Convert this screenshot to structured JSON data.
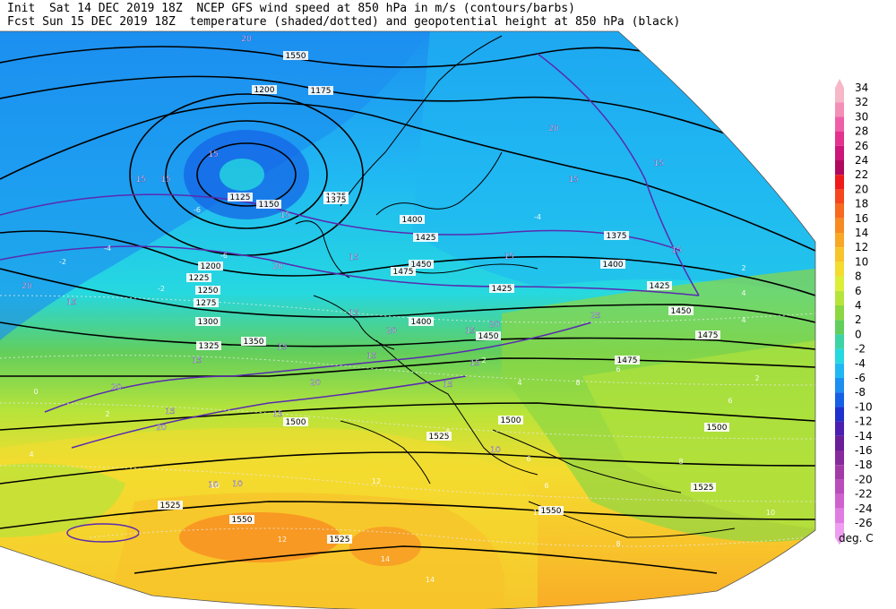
{
  "header": {
    "line1": "Init  Sat 14 DEC 2019 18Z  NCEP GFS wind speed at 850 hPa in m/s (contours/barbs)",
    "line2": "Fcst Sun 15 DEC 2019 18Z  temperature (shaded/dotted) and geopotential height at 850 hPa (black)"
  },
  "legend": {
    "unit": "deg. C",
    "levels": [
      {
        "label": "34",
        "color": "#f6b8c8"
      },
      {
        "label": "32",
        "color": "#f48fb8"
      },
      {
        "label": "30",
        "color": "#ef5fa8"
      },
      {
        "label": "28",
        "color": "#e4328f"
      },
      {
        "label": "26",
        "color": "#cc167a"
      },
      {
        "label": "24",
        "color": "#b00a5e"
      },
      {
        "label": "22",
        "color": "#ef1a1a"
      },
      {
        "label": "20",
        "color": "#f5461d"
      },
      {
        "label": "18",
        "color": "#f76a1f"
      },
      {
        "label": "16",
        "color": "#f88a22"
      },
      {
        "label": "14",
        "color": "#f9a826"
      },
      {
        "label": "12",
        "color": "#f8c42b"
      },
      {
        "label": "10",
        "color": "#f4dc2f"
      },
      {
        "label": "8",
        "color": "#dcee36"
      },
      {
        "label": "6",
        "color": "#b7e43a"
      },
      {
        "label": "4",
        "color": "#8dd743"
      },
      {
        "label": "2",
        "color": "#62ce5c"
      },
      {
        "label": "0",
        "color": "#3dd3a4"
      },
      {
        "label": "-2",
        "color": "#26d8e0"
      },
      {
        "label": "-4",
        "color": "#20b8f2"
      },
      {
        "label": "-6",
        "color": "#1c8ff0"
      },
      {
        "label": "-8",
        "color": "#1660e6"
      },
      {
        "label": "-10",
        "color": "#1f31cc"
      },
      {
        "label": "-12",
        "color": "#4c1fb0"
      },
      {
        "label": "-14",
        "color": "#6a1e98"
      },
      {
        "label": "-16",
        "color": "#862a9c"
      },
      {
        "label": "-18",
        "color": "#a23aa8"
      },
      {
        "label": "-20",
        "color": "#ba4cbb"
      },
      {
        "label": "-22",
        "color": "#cf62cf"
      },
      {
        "label": "-24",
        "color": "#e07de2"
      },
      {
        "label": "-26",
        "color": "#ee9df0"
      }
    ]
  },
  "map": {
    "height_labels": [
      "1550",
      "1200",
      "1175",
      "1125",
      "1150",
      "1375",
      "1200",
      "1225",
      "1250",
      "1275",
      "1300",
      "1325",
      "1350",
      "1375",
      "1400",
      "1425",
      "1450",
      "1475",
      "1500",
      "1525",
      "1550",
      "1400",
      "1425",
      "1450",
      "1475",
      "1500",
      "1525",
      "1550",
      "1525",
      "1375",
      "1400",
      "1425",
      "1450",
      "1475",
      "1500",
      "1525"
    ],
    "wind_labels": [
      "20",
      "15",
      "15",
      "15",
      "15",
      "20",
      "15",
      "20",
      "15",
      "15",
      "15",
      "15",
      "20",
      "15",
      "20",
      "15",
      "15",
      "20",
      "15",
      "20",
      "25",
      "20",
      "15",
      "15",
      "15",
      "15",
      "10",
      "10",
      "10",
      "15",
      "15",
      "20"
    ],
    "temp_labels": [
      "-6",
      "-4",
      "-2",
      "0",
      "2",
      "4",
      "6",
      "8",
      "10",
      "12",
      "14",
      "-2",
      "-4",
      "-6",
      "2",
      "4",
      "6",
      "8",
      "10",
      "12",
      "8",
      "6",
      "4",
      "2",
      "12",
      "14",
      "6",
      "4",
      "2",
      "8"
    ]
  }
}
